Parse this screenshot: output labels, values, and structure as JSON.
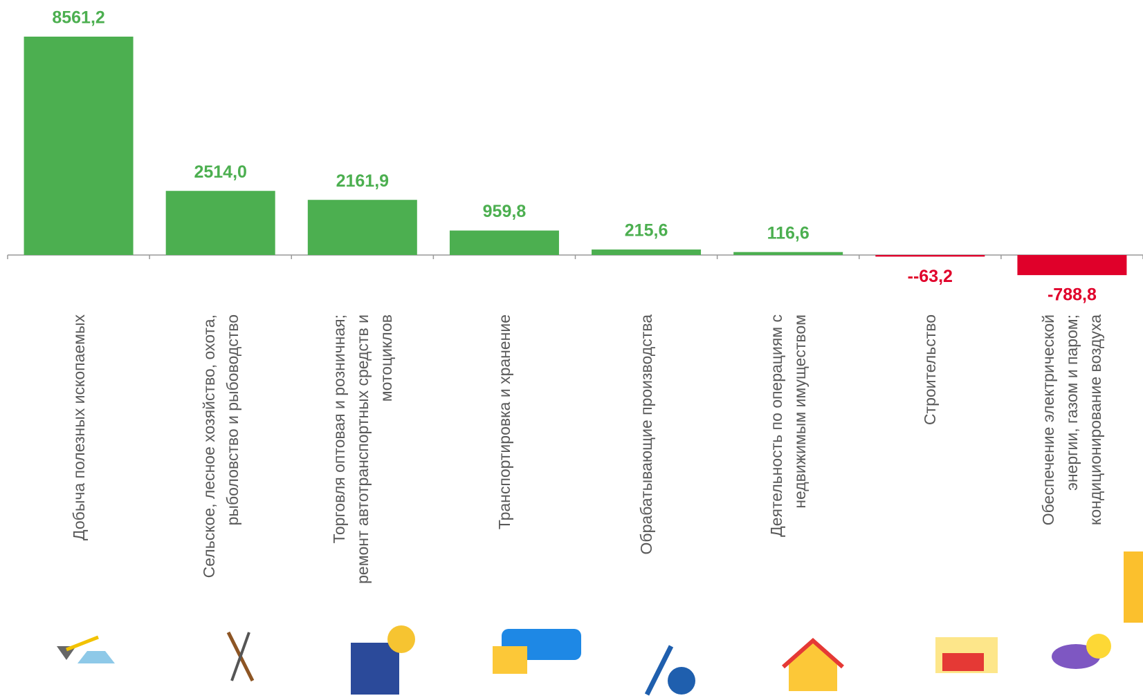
{
  "chart_data": {
    "type": "bar",
    "categories": [
      "Добыча полезных ископаемых",
      "Сельское, лесное хозяйство, охота, рыболовство и рыбоводство",
      "Торговля оптовая и розничная; ремонт автотранспортных средств и мотоциклов",
      "Транспортировка и хранение",
      "Обрабатывающие производства",
      "Деятельность по операциям с недвижимым имуществом",
      "Строительство",
      "Обеспечение электрической энергии, газом и паром; кондиционирование воздуха"
    ],
    "values": [
      8561.2,
      2514.0,
      2161.9,
      959.8,
      215.6,
      116.6,
      -63.2,
      -788.8
    ],
    "value_labels": [
      "8561,2",
      "2514,0",
      "2161,9",
      "959,8",
      "215,6",
      "116,6",
      "--63,2",
      "-788,8"
    ],
    "colors": {
      "positive": "#4caf50",
      "negative": "#e0002a"
    }
  }
}
